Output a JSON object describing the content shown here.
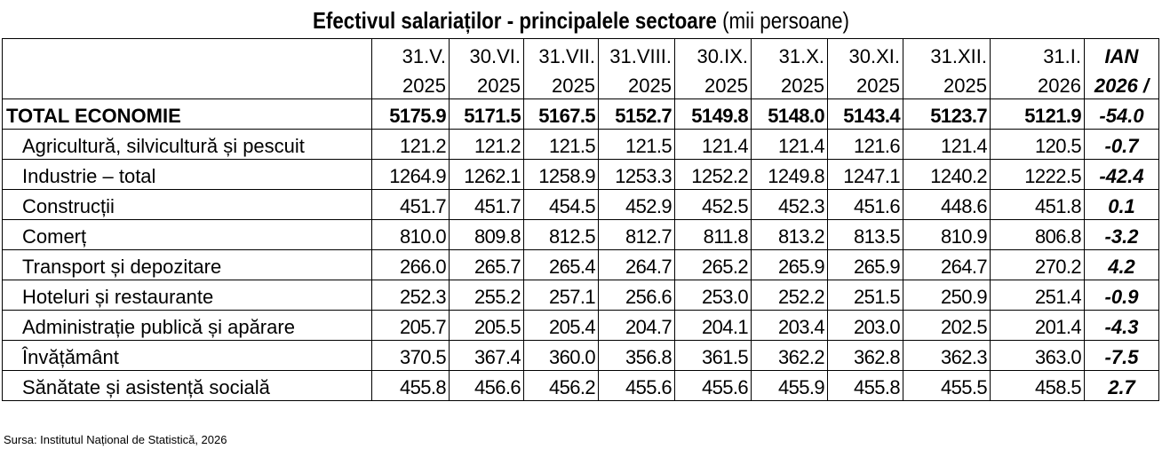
{
  "title": {
    "bold": "Efectivul salariaților - principalele sectoare",
    "normal": "(mii persoane)"
  },
  "header": {
    "months": [
      "31.V.",
      "30.VI.",
      "31.VII.",
      "31.VIII.",
      "30.IX.",
      "31.X.",
      "30.XI.",
      "31.XII.",
      "31.I."
    ],
    "years": [
      "2025",
      "2025",
      "2025",
      "2025",
      "2025",
      "2025",
      "2025",
      "2025",
      "2026"
    ],
    "change_line1": "IAN",
    "change_line2": "2026 /"
  },
  "chart_data": {
    "type": "table",
    "title": "Efectivul salariaților - principalele sectoare (mii persoane)",
    "columns": [
      "31.V. 2025",
      "30.VI. 2025",
      "31.VII. 2025",
      "31.VIII. 2025",
      "30.IX. 2025",
      "31.X. 2025",
      "30.XI. 2025",
      "31.XII. 2025",
      "31.I. 2026",
      "IAN 2026 /"
    ],
    "rows": [
      {
        "label": "TOTAL ECONOMIE",
        "values": [
          "5175.9",
          "5171.5",
          "5167.5",
          "5152.7",
          "5149.8",
          "5148.0",
          "5143.4",
          "5123.7",
          "5121.9"
        ],
        "change": "-54.0"
      },
      {
        "label": "Agricultură, silvicultură și pescuit",
        "values": [
          "121.2",
          "121.2",
          "121.5",
          "121.5",
          "121.4",
          "121.4",
          "121.6",
          "121.4",
          "120.5"
        ],
        "change": "-0.7"
      },
      {
        "label": "Industrie – total",
        "values": [
          "1264.9",
          "1262.1",
          "1258.9",
          "1253.3",
          "1252.2",
          "1249.8",
          "1247.1",
          "1240.2",
          "1222.5"
        ],
        "change": "-42.4"
      },
      {
        "label": "Construcții",
        "values": [
          "451.7",
          "451.7",
          "454.5",
          "452.9",
          "452.5",
          "452.3",
          "451.6",
          "448.6",
          "451.8"
        ],
        "change": "0.1"
      },
      {
        "label": "Comerț",
        "values": [
          "810.0",
          "809.8",
          "812.5",
          "812.7",
          "811.8",
          "813.2",
          "813.5",
          "810.9",
          "806.8"
        ],
        "change": "-3.2"
      },
      {
        "label": "Transport și depozitare",
        "values": [
          "266.0",
          "265.7",
          "265.4",
          "264.7",
          "265.2",
          "265.9",
          "265.9",
          "264.7",
          "270.2"
        ],
        "change": "4.2"
      },
      {
        "label": "Hoteluri și restaurante",
        "values": [
          "252.3",
          "255.2",
          "257.1",
          "256.6",
          "253.0",
          "252.2",
          "251.5",
          "250.9",
          "251.4"
        ],
        "change": "-0.9"
      },
      {
        "label": "Administrație publică și apărare",
        "values": [
          "205.7",
          "205.5",
          "205.4",
          "204.7",
          "204.1",
          "203.4",
          "203.0",
          "202.5",
          "201.4"
        ],
        "change": "-4.3"
      },
      {
        "label": "Învățământ",
        "values": [
          "370.5",
          "367.4",
          "360.0",
          "356.8",
          "361.5",
          "362.2",
          "362.8",
          "362.3",
          "363.0"
        ],
        "change": "-7.5"
      },
      {
        "label": "Sănătate și asistență socială",
        "values": [
          "455.8",
          "456.6",
          "456.2",
          "455.6",
          "455.6",
          "455.9",
          "455.8",
          "455.5",
          "458.5"
        ],
        "change": "2.7"
      }
    ]
  },
  "source": "Sursa: Institutul Național de Statistică, 2026"
}
